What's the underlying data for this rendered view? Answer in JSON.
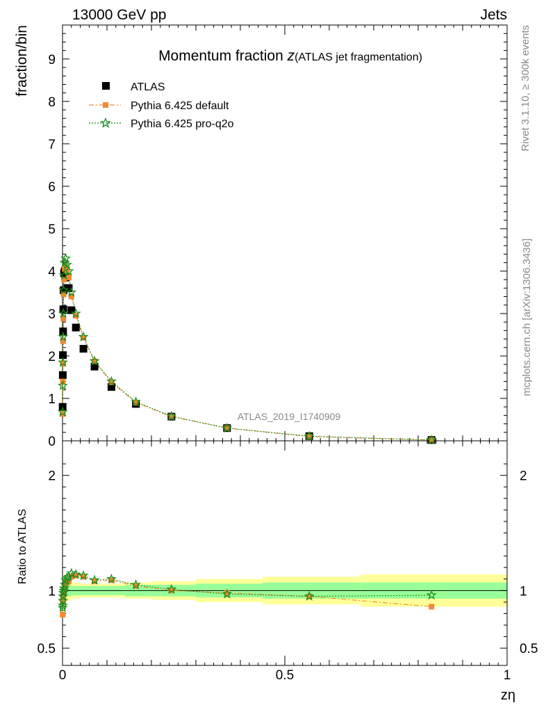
{
  "header": {
    "left": "13000 GeV pp",
    "right": "Jets"
  },
  "side_labels": {
    "top": "Rivet 3.1.10, ≥ 300k events",
    "bottom": "mcplots.cern.ch [arXiv:1306.3436]"
  },
  "watermark": "ATLAS_2019_I1740909",
  "colors": {
    "atlas": "#000000",
    "default": "#f28a30",
    "proq2o": "#1a8c1a",
    "band_inner": "#99ff99",
    "band_outer": "#ffff99"
  },
  "chart_data": {
    "type": "scatter",
    "title_main": "Momentum fraction ",
    "title_var": "z",
    "title_sub": "(ATLAS jet fragmentation)",
    "xlabel": "zη",
    "ylabel": "fraction/bin",
    "ratio_ylabel": "Ratio to ATLAS",
    "xlim": [
      0,
      1
    ],
    "ylim": [
      0,
      9.8
    ],
    "ratio_ylim": [
      0.35,
      2.3
    ],
    "xticks": [
      0,
      0.5,
      1
    ],
    "xtick_labels": [
      "0",
      "0.5",
      "1"
    ],
    "yticks": [
      0,
      1,
      2,
      3,
      4,
      5,
      6,
      7,
      8,
      9
    ],
    "ratio_yticks": [
      0.5,
      1,
      2
    ],
    "ratio_ytick_labels": [
      "0.5",
      "1",
      "2"
    ],
    "legend": [
      "ATLAS",
      "Pythia 6.425 default",
      "Pythia 6.425 pro-q2o"
    ],
    "x": [
      0.0003,
      0.0006,
      0.0009,
      0.0013,
      0.0018,
      0.0025,
      0.0035,
      0.005,
      0.007,
      0.01,
      0.014,
      0.02,
      0.03,
      0.047,
      0.072,
      0.11,
      0.165,
      0.245,
      0.37,
      0.555,
      0.83
    ],
    "series": [
      {
        "name": "ATLAS",
        "values": [
          0.8,
          1.55,
          2.02,
          2.58,
          3.1,
          3.55,
          3.95,
          4.0,
          3.85,
          3.6,
          3.6,
          3.08,
          2.67,
          2.17,
          1.75,
          1.27,
          0.87,
          0.57,
          0.3,
          0.11,
          0.02
        ]
      },
      {
        "name": "Pythia 6.425 default",
        "values": [
          0.63,
          1.4,
          1.82,
          2.35,
          2.88,
          3.45,
          3.8,
          4.05,
          4.1,
          4.0,
          3.85,
          3.4,
          2.95,
          2.43,
          1.87,
          1.38,
          0.9,
          0.57,
          0.3,
          0.1,
          0.02
        ]
      },
      {
        "name": "Pythia 6.425 pro-q2o",
        "values": [
          0.68,
          1.3,
          1.85,
          2.45,
          3.0,
          3.55,
          3.9,
          4.2,
          4.3,
          4.15,
          4.0,
          3.5,
          3.0,
          2.45,
          1.88,
          1.4,
          0.92,
          0.58,
          0.3,
          0.11,
          0.02
        ]
      }
    ],
    "ratio_series": [
      {
        "name": "Pythia 6.425 default",
        "values": [
          0.79,
          0.9,
          0.93,
          0.95,
          0.97,
          0.99,
          1.0,
          1.02,
          1.05,
          1.07,
          1.08,
          1.12,
          1.13,
          1.12,
          1.08,
          1.09,
          1.04,
          1.0,
          0.98,
          0.95,
          0.86
        ]
      },
      {
        "name": "Pythia 6.425 pro-q2o",
        "values": [
          0.85,
          0.87,
          0.91,
          0.95,
          0.98,
          1.0,
          1.02,
          1.05,
          1.09,
          1.11,
          1.12,
          1.15,
          1.14,
          1.13,
          1.09,
          1.1,
          1.05,
          1.01,
          0.97,
          0.95,
          0.96
        ]
      }
    ],
    "ratio_bands": [
      {
        "x0": 0.0,
        "x1": 0.005,
        "inner": 0.07,
        "outer": 0.13
      },
      {
        "x0": 0.005,
        "x1": 0.02,
        "inner": 0.05,
        "outer": 0.09
      },
      {
        "x0": 0.02,
        "x1": 0.04,
        "inner": 0.04,
        "outer": 0.07
      },
      {
        "x0": 0.04,
        "x1": 0.09,
        "inner": 0.04,
        "outer": 0.06
      },
      {
        "x0": 0.09,
        "x1": 0.14,
        "inner": 0.04,
        "outer": 0.06
      },
      {
        "x0": 0.14,
        "x1": 0.2,
        "inner": 0.05,
        "outer": 0.07
      },
      {
        "x0": 0.2,
        "x1": 0.3,
        "inner": 0.05,
        "outer": 0.08
      },
      {
        "x0": 0.3,
        "x1": 0.45,
        "inner": 0.06,
        "outer": 0.1
      },
      {
        "x0": 0.45,
        "x1": 0.67,
        "inner": 0.07,
        "outer": 0.12
      },
      {
        "x0": 0.67,
        "x1": 1.0,
        "inner": 0.07,
        "outer": 0.14
      }
    ]
  }
}
